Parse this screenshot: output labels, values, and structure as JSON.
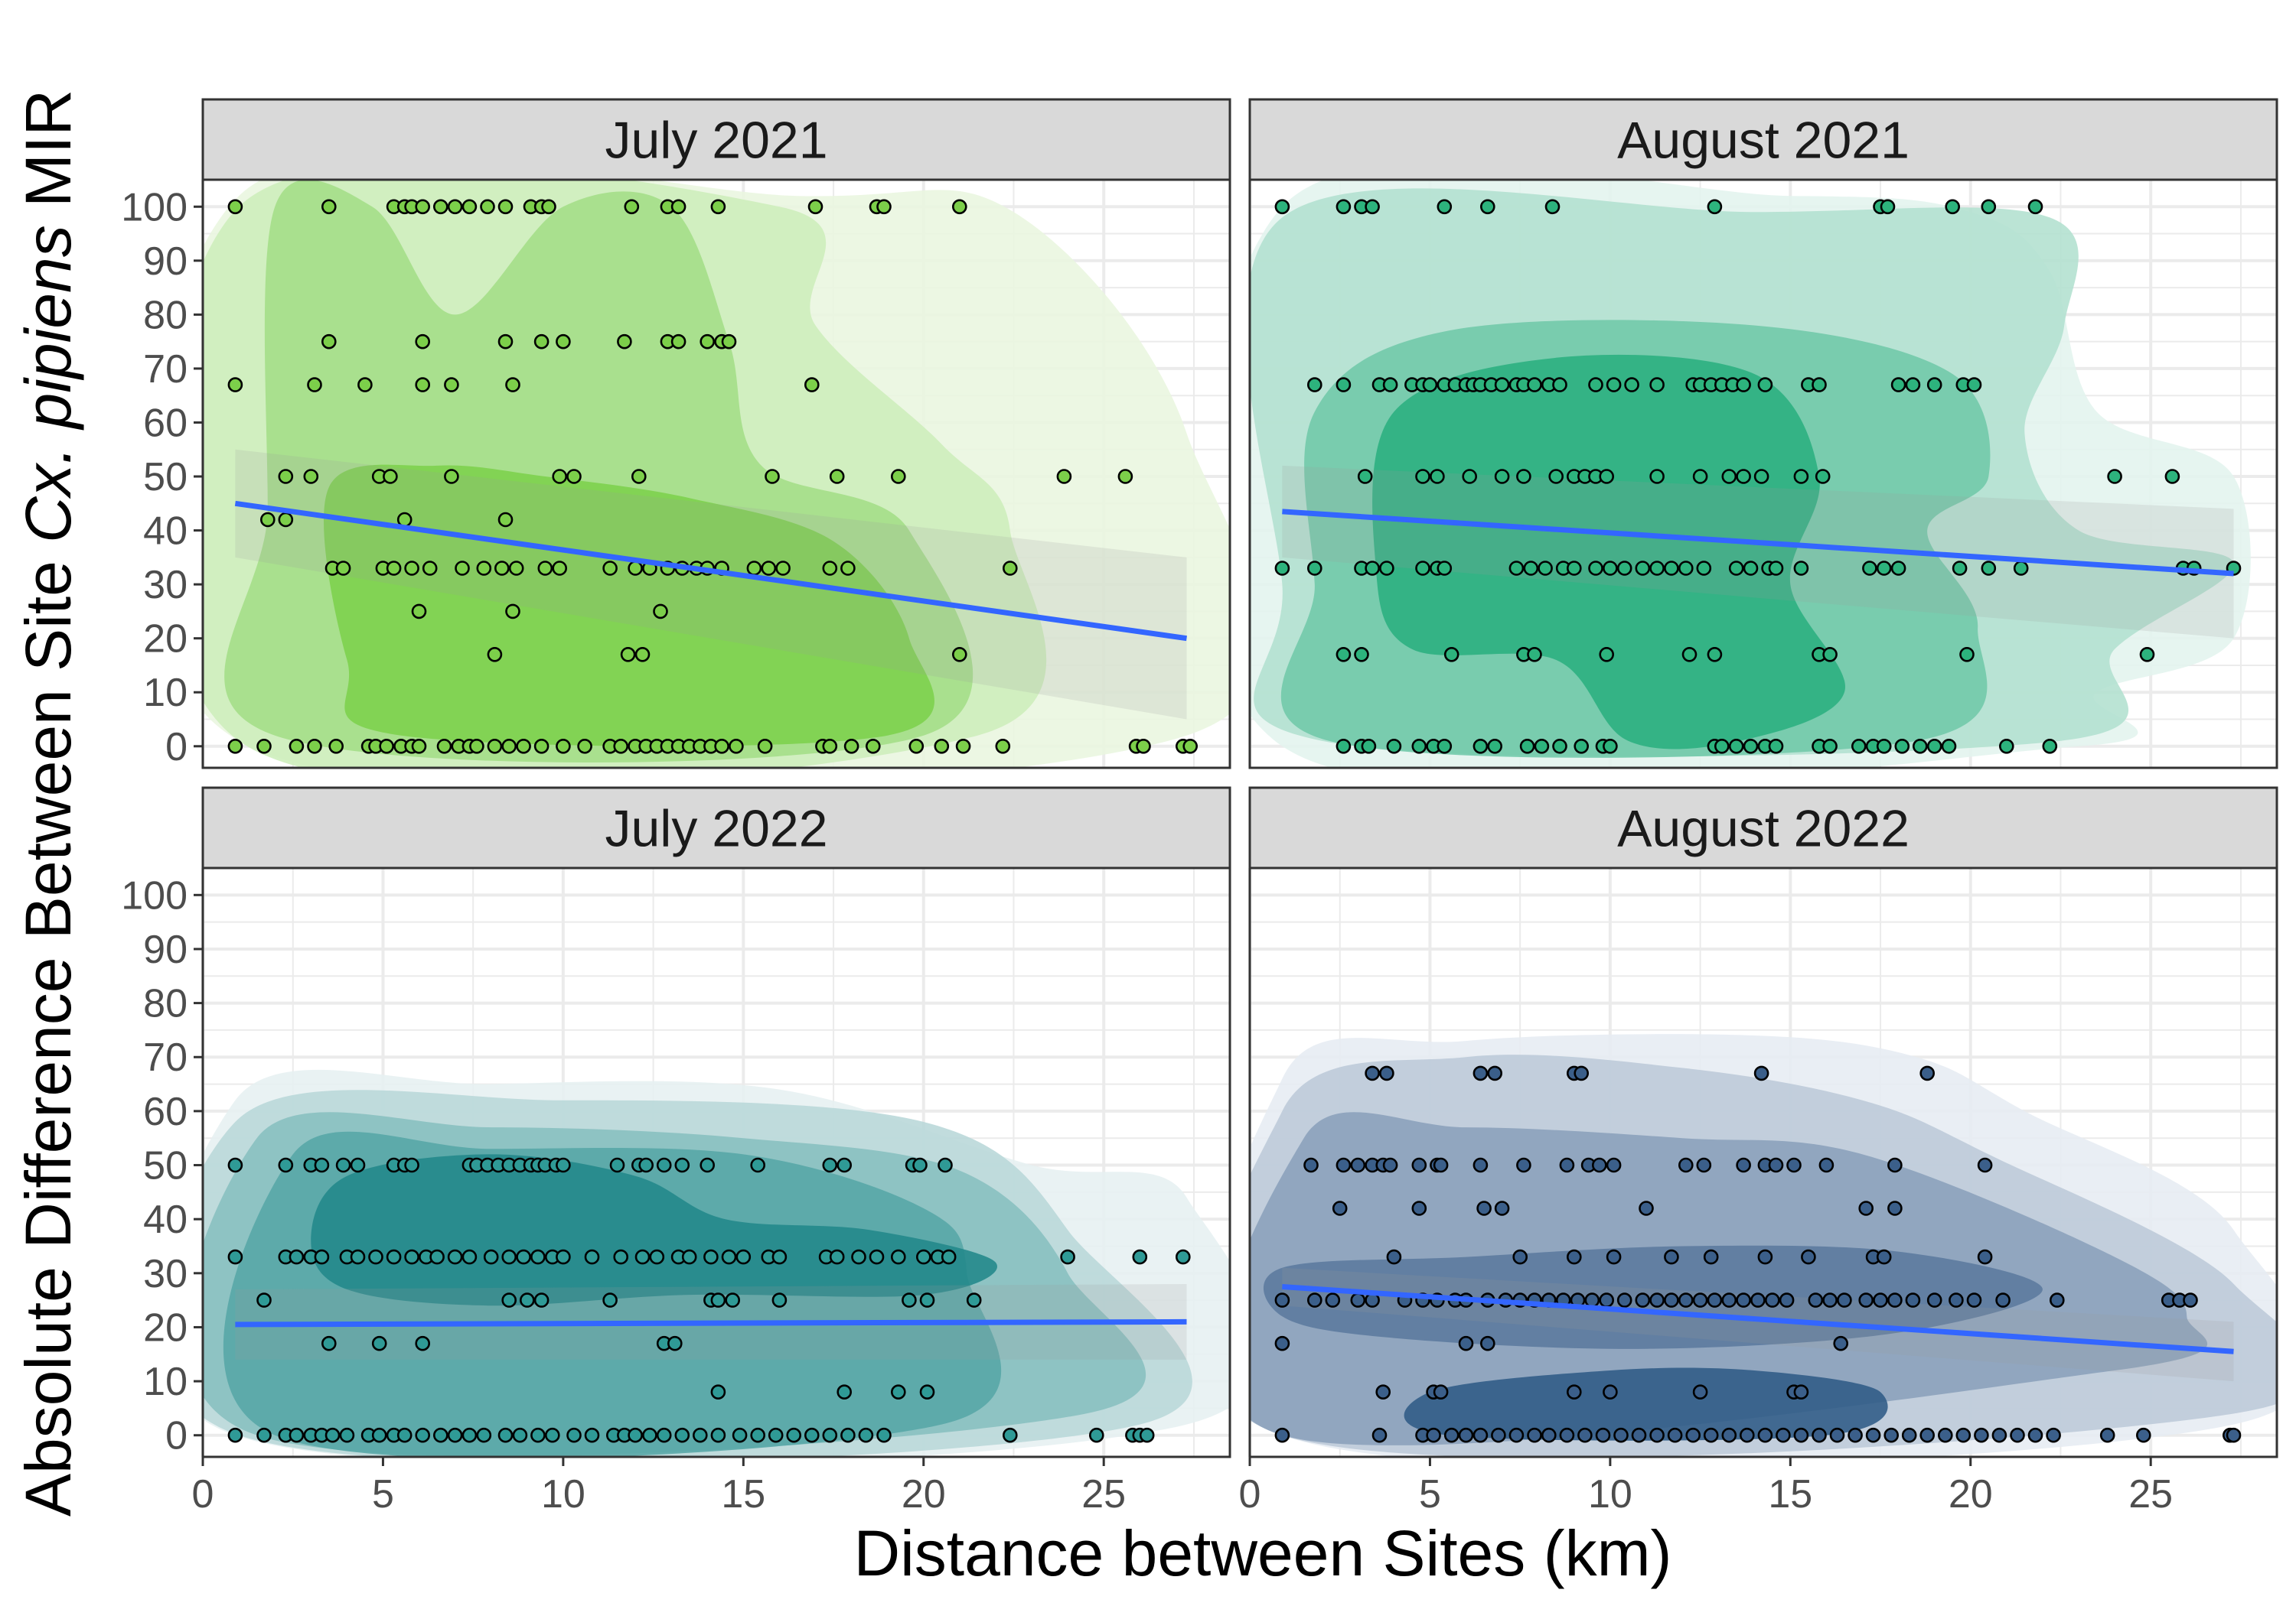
{
  "figure": {
    "x_axis_title": "Distance between Sites (km)",
    "y_axis_title_pre": "Absolute Difference Between Site",
    "y_axis_title_italic": "Cx. pipiens",
    "y_axis_title_post": "MIR",
    "x_tick_labels": [
      "0",
      "5",
      "10",
      "15",
      "20",
      "25"
    ],
    "y_tick_labels": [
      "0",
      "10",
      "20",
      "30",
      "40",
      "50",
      "60",
      "70",
      "80",
      "90",
      "100"
    ],
    "colors": {
      "trend_line": "#3366ff",
      "strip_fill": "#d9d9d9",
      "grid": "#ebebeb",
      "panel_border": "#333333"
    }
  },
  "chart_data": [
    {
      "type": "scatter",
      "title": "July 2021",
      "xlim": [
        0,
        28.5
      ],
      "ylim": [
        -4,
        105
      ],
      "x_ticks": [
        0,
        5,
        10,
        15,
        20,
        25
      ],
      "y_ticks": [
        0,
        10,
        20,
        30,
        40,
        50,
        60,
        70,
        80,
        90,
        100
      ],
      "grid": true,
      "point_color": "#7ccf4a",
      "density_colors": [
        "#e9f6df",
        "#cdeebb",
        "#a3de86",
        "#7cd04c"
      ],
      "trend": {
        "x": [
          0.9,
          27.3
        ],
        "y": [
          45,
          20
        ]
      },
      "band": {
        "x": [
          0.9,
          27.3
        ],
        "upper": [
          55,
          35
        ],
        "lower": [
          35,
          5
        ]
      },
      "points": {
        "0": [
          0.9,
          1.7,
          2.6,
          3.1,
          3.7,
          4.6,
          4.8,
          5.1,
          5.5,
          5.8,
          6.0,
          6.7,
          7.1,
          7.4,
          7.6,
          8.1,
          8.5,
          8.9,
          9.4,
          10.0,
          10.6,
          11.3,
          11.6,
          12.0,
          12.3,
          12.6,
          12.9,
          13.2,
          13.5,
          13.8,
          14.1,
          14.4,
          14.8,
          15.6,
          17.2,
          17.4,
          18.0,
          18.6,
          19.8,
          20.5,
          21.1,
          22.2,
          25.9,
          26.1,
          27.2,
          27.4
        ],
        "17": [
          8.1,
          11.8,
          12.2,
          21.0
        ],
        "25": [
          6.0,
          8.6,
          12.7
        ],
        "33": [
          3.6,
          3.9,
          5.0,
          5.3,
          5.8,
          6.3,
          7.2,
          7.8,
          8.3,
          8.7,
          9.5,
          9.9,
          11.3,
          12.0,
          12.4,
          12.9,
          13.3,
          13.7,
          14.0,
          14.4,
          15.3,
          15.7,
          16.1,
          17.4,
          17.9,
          22.4
        ],
        "42": [
          1.8,
          2.3,
          5.6,
          8.4
        ],
        "50": [
          2.3,
          3.0,
          4.9,
          5.2,
          6.9,
          9.9,
          10.3,
          12.1,
          15.8,
          17.6,
          19.3,
          23.9,
          25.6
        ],
        "67": [
          0.9,
          3.1,
          4.5,
          6.1,
          6.9,
          8.6,
          16.9
        ],
        "75": [
          3.5,
          6.1,
          8.4,
          9.4,
          10.0,
          11.7,
          12.9,
          13.2,
          14.0,
          14.4,
          14.6
        ],
        "100": [
          0.9,
          3.5,
          5.3,
          5.6,
          5.8,
          6.1,
          6.6,
          7.0,
          7.4,
          7.9,
          8.4,
          9.1,
          9.4,
          9.6,
          11.9,
          12.9,
          13.2,
          14.3,
          17.0,
          18.7,
          18.9,
          21.0
        ]
      }
    },
    {
      "type": "scatter",
      "title": "August 2021",
      "xlim": [
        0,
        28.5
      ],
      "ylim": [
        -4,
        105
      ],
      "x_ticks": [
        0,
        5,
        10,
        15,
        20,
        25
      ],
      "y_ticks": [
        0,
        10,
        20,
        30,
        40,
        50,
        60,
        70,
        80,
        90,
        100
      ],
      "grid": true,
      "point_color": "#2db37d",
      "density_colors": [
        "#e3f4ee",
        "#b2e0cf",
        "#6fc8a8",
        "#2aaf7f"
      ],
      "trend": {
        "x": [
          0.9,
          27.3
        ],
        "y": [
          43.5,
          32
        ]
      },
      "band": {
        "x": [
          0.9,
          27.3
        ],
        "upper": [
          52,
          44
        ],
        "lower": [
          35,
          20
        ]
      },
      "points": {
        "0": [
          2.6,
          3.1,
          3.3,
          4.0,
          4.7,
          5.1,
          5.4,
          6.4,
          6.8,
          7.7,
          8.1,
          8.6,
          9.2,
          9.8,
          10.0,
          12.9,
          13.1,
          13.5,
          13.9,
          14.3,
          14.6,
          15.8,
          16.1,
          16.9,
          17.3,
          17.6,
          18.1,
          18.6,
          19.0,
          19.4,
          21.0,
          22.2
        ],
        "17": [
          2.6,
          3.1,
          5.6,
          7.6,
          7.9,
          9.9,
          12.2,
          12.9,
          15.8,
          16.1,
          19.9,
          24.9
        ],
        "33": [
          0.9,
          1.8,
          3.1,
          3.4,
          3.8,
          4.8,
          5.2,
          5.4,
          7.4,
          7.8,
          8.2,
          8.7,
          9.0,
          9.6,
          10.0,
          10.4,
          10.9,
          11.3,
          11.7,
          12.1,
          12.6,
          13.5,
          13.9,
          14.4,
          14.6,
          15.3,
          17.2,
          17.6,
          18.0,
          19.7,
          20.5,
          21.4,
          25.9,
          26.2,
          27.3
        ],
        "50": [
          3.2,
          4.8,
          5.2,
          6.1,
          7.0,
          7.6,
          8.5,
          9.0,
          9.3,
          9.6,
          9.9,
          11.3,
          12.5,
          13.3,
          13.7,
          14.2,
          15.3,
          15.9,
          24.0,
          25.6
        ],
        "67": [
          1.8,
          2.6,
          3.6,
          3.9,
          4.5,
          4.8,
          5.0,
          5.4,
          5.7,
          6.0,
          6.2,
          6.4,
          6.7,
          7.0,
          7.4,
          7.6,
          7.9,
          8.3,
          8.6,
          9.6,
          10.1,
          10.6,
          11.3,
          12.3,
          12.5,
          12.8,
          13.1,
          13.4,
          13.7,
          14.3,
          15.5,
          15.8,
          18.0,
          18.4,
          19.0,
          19.8,
          20.1
        ],
        "100": [
          0.9,
          2.6,
          3.1,
          3.4,
          5.4,
          6.6,
          8.4,
          12.9,
          17.5,
          17.7,
          19.5,
          20.5,
          21.8
        ]
      }
    },
    {
      "type": "scatter",
      "title": "July 2022",
      "xlim": [
        0,
        28.5
      ],
      "ylim": [
        -4,
        105
      ],
      "x_ticks": [
        0,
        5,
        10,
        15,
        20,
        25
      ],
      "y_ticks": [
        0,
        10,
        20,
        30,
        40,
        50,
        60,
        70,
        80,
        90,
        100
      ],
      "grid": true,
      "point_color": "#2f9a96",
      "density_colors": [
        "#e6f0f1",
        "#b8d7d8",
        "#87bfbf",
        "#57a6a6",
        "#22888a"
      ],
      "trend": {
        "x": [
          0.9,
          27.3
        ],
        "y": [
          20.5,
          21
        ]
      },
      "band": {
        "x": [
          0.9,
          27.3
        ],
        "upper": [
          27,
          28
        ],
        "lower": [
          14,
          14
        ]
      },
      "points": {
        "0": [
          0.9,
          1.7,
          2.3,
          2.6,
          3.0,
          3.3,
          3.6,
          4.0,
          4.6,
          4.9,
          5.3,
          5.6,
          6.1,
          6.6,
          7.0,
          7.4,
          7.8,
          8.4,
          8.8,
          9.3,
          9.7,
          10.3,
          10.8,
          11.4,
          11.7,
          12.0,
          12.4,
          12.8,
          13.3,
          13.8,
          14.3,
          14.9,
          15.4,
          15.9,
          16.4,
          16.9,
          17.4,
          17.9,
          18.4,
          18.9,
          22.4,
          24.8,
          25.8,
          26.0,
          26.2
        ],
        "8": [
          14.3,
          17.8,
          19.3,
          20.1
        ],
        "17": [
          3.5,
          4.9,
          6.1,
          12.8,
          13.1
        ],
        "25": [
          1.7,
          8.5,
          9.0,
          9.4,
          11.3,
          14.1,
          14.3,
          14.7,
          16.0,
          19.6,
          20.1,
          21.4
        ],
        "33": [
          0.9,
          2.3,
          2.6,
          3.0,
          3.3,
          4.0,
          4.3,
          4.8,
          5.3,
          5.8,
          6.2,
          6.5,
          7.0,
          7.4,
          8.0,
          8.5,
          8.9,
          9.3,
          9.7,
          10.0,
          10.8,
          11.6,
          12.2,
          12.6,
          13.2,
          13.5,
          14.1,
          14.6,
          15.0,
          15.7,
          16.0,
          17.3,
          17.6,
          18.2,
          18.7,
          19.3,
          20.0,
          20.4,
          20.7,
          24.0,
          26.0,
          27.2
        ],
        "50": [
          0.9,
          2.3,
          3.0,
          3.3,
          3.9,
          4.3,
          5.3,
          5.6,
          5.8,
          7.4,
          7.6,
          7.9,
          8.2,
          8.5,
          8.8,
          9.1,
          9.3,
          9.5,
          9.8,
          10.0,
          11.5,
          12.1,
          12.3,
          12.8,
          13.3,
          14.0,
          15.4,
          17.4,
          17.8,
          19.7,
          19.9,
          20.6
        ]
      }
    },
    {
      "type": "scatter",
      "title": "August 2022",
      "xlim": [
        0,
        28.5
      ],
      "ylim": [
        -4,
        105
      ],
      "x_ticks": [
        0,
        5,
        10,
        15,
        20,
        25
      ],
      "y_ticks": [
        0,
        10,
        20,
        30,
        40,
        50,
        60,
        70,
        80,
        90,
        100
      ],
      "grid": true,
      "point_color": "#3b5f8a",
      "density_colors": [
        "#e6ecf2",
        "#bcc9d8",
        "#8aa1bb",
        "#5b7a9e",
        "#2f5b86"
      ],
      "trend": {
        "x": [
          0.9,
          27.3
        ],
        "y": [
          27.5,
          15.5
        ]
      },
      "band": {
        "x": [
          0.9,
          27.3
        ],
        "upper": [
          31,
          21
        ],
        "lower": [
          24,
          10
        ]
      },
      "points": {
        "0": [
          0.9,
          3.6,
          4.8,
          5.1,
          5.6,
          6.0,
          6.4,
          6.9,
          7.4,
          7.9,
          8.3,
          8.8,
          9.3,
          9.8,
          10.3,
          10.8,
          11.3,
          11.8,
          12.3,
          12.8,
          13.3,
          13.8,
          14.3,
          14.8,
          15.3,
          15.8,
          16.3,
          16.8,
          17.3,
          17.8,
          18.3,
          18.8,
          19.3,
          19.8,
          20.3,
          20.8,
          21.3,
          21.8,
          22.3,
          23.8,
          24.8,
          27.2,
          27.3
        ],
        "8": [
          3.7,
          5.1,
          5.3,
          9.0,
          10.0,
          12.5,
          15.1,
          15.3
        ],
        "17": [
          0.9,
          6.0,
          6.6,
          16.4
        ],
        "25": [
          0.9,
          1.8,
          2.3,
          3.0,
          3.4,
          4.3,
          4.8,
          5.2,
          5.7,
          6.0,
          6.6,
          7.1,
          7.5,
          7.9,
          8.3,
          8.7,
          9.1,
          9.5,
          9.9,
          10.4,
          10.9,
          11.3,
          11.7,
          12.1,
          12.5,
          12.9,
          13.3,
          13.7,
          14.1,
          14.5,
          14.9,
          15.7,
          16.1,
          16.5,
          17.1,
          17.5,
          17.9,
          18.4,
          19.0,
          19.6,
          20.1,
          20.9,
          22.4,
          25.5,
          25.8,
          26.1
        ],
        "33": [
          4.0,
          7.5,
          9.0,
          10.1,
          11.7,
          12.8,
          14.3,
          15.5,
          17.3,
          17.6,
          20.4
        ],
        "42": [
          2.5,
          4.7,
          6.5,
          7.0,
          11.0,
          17.1,
          17.9
        ],
        "50": [
          1.7,
          2.6,
          3.0,
          3.4,
          3.7,
          3.9,
          4.7,
          5.2,
          5.3,
          6.4,
          7.6,
          8.8,
          9.4,
          9.7,
          10.1,
          12.1,
          12.6,
          13.7,
          14.3,
          14.6,
          15.1,
          16.0,
          17.9,
          20.4
        ],
        "67": [
          3.4,
          3.8,
          6.4,
          6.8,
          9.0,
          9.2,
          14.2,
          18.8
        ]
      }
    }
  ]
}
